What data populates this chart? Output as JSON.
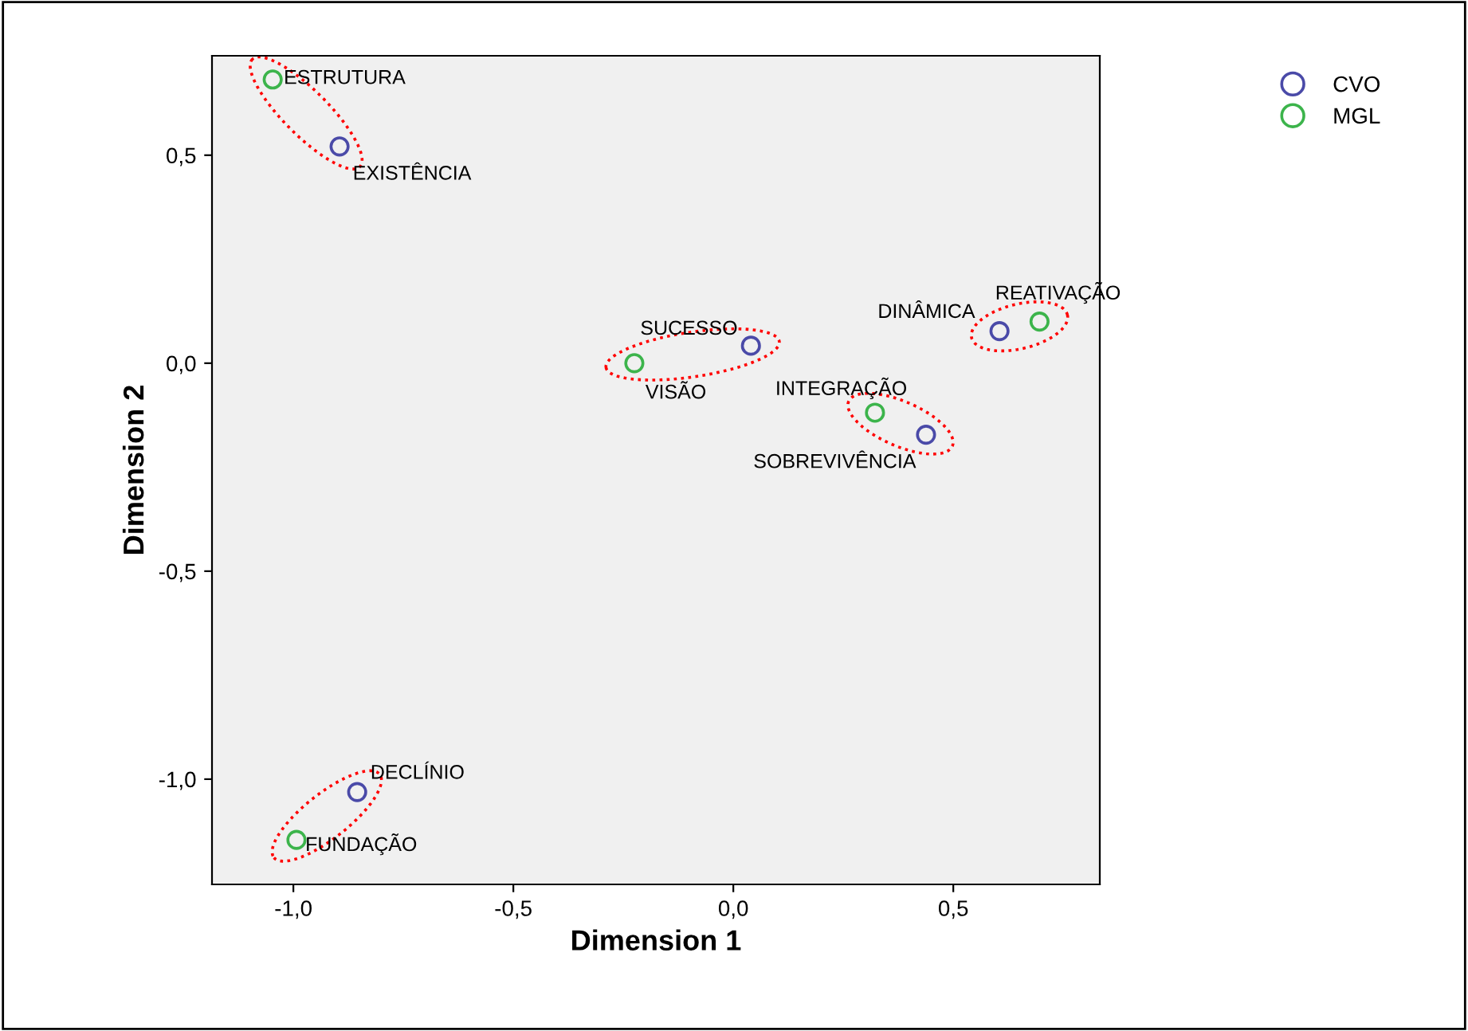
{
  "chart_data": {
    "type": "scatter",
    "xlabel": "Dimension 1",
    "ylabel": "Dimension 2",
    "xlim": [
      -1.185,
      0.833
    ],
    "ylim": [
      -1.253,
      0.739
    ],
    "xticks": [
      {
        "value": -1.0,
        "label": "-1,0"
      },
      {
        "value": -0.5,
        "label": "-0,5"
      },
      {
        "value": 0.0,
        "label": "0,0"
      },
      {
        "value": 0.5,
        "label": "0,5"
      }
    ],
    "yticks": [
      {
        "value": -1.0,
        "label": "-1,0"
      },
      {
        "value": -0.5,
        "label": "-0,5"
      },
      {
        "value": 0.0,
        "label": "0,0"
      },
      {
        "value": 0.5,
        "label": "0,5"
      }
    ],
    "series": [
      {
        "name": "CVO",
        "color": "#4a4aa8",
        "x": [
          -0.895,
          0.04,
          0.605,
          0.438,
          -0.855
        ],
        "values": [
          0.521,
          0.042,
          0.077,
          -0.172,
          -1.031
        ]
      },
      {
        "name": "MGL",
        "color": "#3cb44b",
        "x": [
          -1.047,
          -0.225,
          0.696,
          0.322,
          -0.993
        ],
        "values": [
          0.682,
          0.0,
          0.1,
          -0.119,
          -1.146
        ]
      }
    ],
    "annotations": [
      {
        "text": "EXISTÊNCIA",
        "x": -0.895,
        "y": 0.521
      },
      {
        "text": "SUCESSO",
        "x": 0.04,
        "y": 0.042
      },
      {
        "text": "DINÂMICA",
        "x": 0.605,
        "y": 0.077
      },
      {
        "text": "SOBREVIVÊNCIA",
        "x": 0.438,
        "y": -0.172
      },
      {
        "text": "DECLÍNIO",
        "x": -0.855,
        "y": -1.031
      },
      {
        "text": "ESTRUTURA",
        "x": -1.047,
        "y": 0.682
      },
      {
        "text": "VISÃO",
        "x": -0.225,
        "y": 0.0
      },
      {
        "text": "REATIVAÇÃO",
        "x": 0.696,
        "y": 0.1
      },
      {
        "text": "INTEGRAÇÃO",
        "x": 0.322,
        "y": -0.119
      },
      {
        "text": "FUNDAÇÃO",
        "x": -0.993,
        "y": -1.146
      }
    ],
    "marker": "circle",
    "grid": false,
    "legend": "top right"
  }
}
